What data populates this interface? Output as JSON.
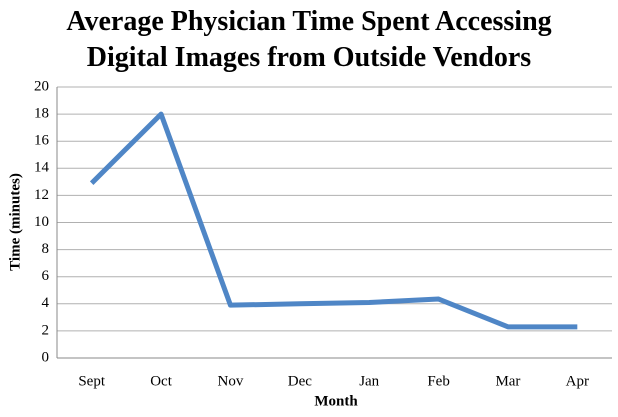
{
  "chart_data": {
    "type": "line",
    "title": "Average Physician Time Spent Accessing Digital Images from Outside Vendors",
    "x_label": "Month",
    "y_label": "Time (minutes)",
    "categories": [
      "Sept",
      "Oct",
      "Nov",
      "Dec",
      "Jan",
      "Feb",
      "Mar",
      "Apr"
    ],
    "series": [
      {
        "name": "Time",
        "color": "#4f86c6",
        "values": [
          12.9,
          18,
          3.9,
          4.0,
          4.1,
          4.35,
          2.3,
          2.3
        ]
      }
    ],
    "ylim": [
      0,
      20
    ],
    "yticks": [
      0,
      2,
      4,
      6,
      8,
      10,
      12,
      14,
      16,
      18,
      20
    ],
    "grid": true
  }
}
